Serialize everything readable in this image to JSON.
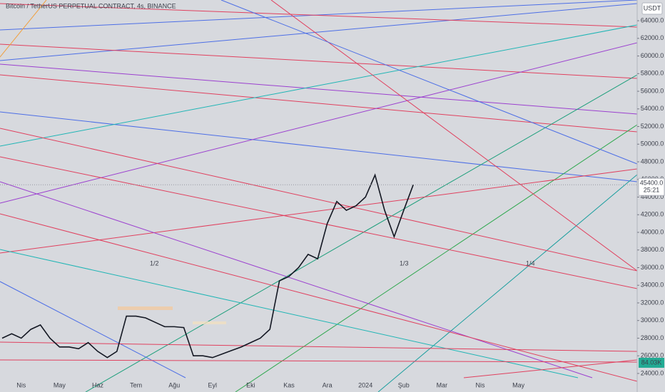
{
  "chart_data": {
    "type": "line",
    "title": "Bitcoin / TetherUS PERPETUAL CONTRACT, 4s, BINANCE",
    "currency": "USDT",
    "last_price_label": "45400.0",
    "countdown": "25:21",
    "volume_label": "84.03K",
    "annotations": [
      "1/2",
      "1/3",
      "1/4"
    ],
    "categories": [
      null,
      null,
      "Nis",
      null,
      null,
      null,
      "May",
      null,
      null,
      null,
      "Haz",
      null,
      null,
      null,
      "Tem",
      null,
      null,
      null,
      "Ağu",
      null,
      null,
      null,
      "Eyl",
      null,
      null,
      null,
      "Eki",
      null,
      null,
      null,
      "Kas",
      null,
      null,
      null,
      "Ara",
      null,
      null,
      null,
      "2024",
      null,
      null,
      null,
      "Şub",
      null,
      null,
      null,
      "Mar",
      null,
      null,
      null,
      "Nis",
      null,
      null,
      null,
      "May",
      null,
      null,
      null,
      null,
      null,
      null,
      null,
      null,
      null,
      null,
      null,
      null
    ],
    "series": [
      {
        "name": "BTCUSDT",
        "color": "#131722",
        "values": [
          28000,
          28500,
          28000,
          29000,
          29500,
          28000,
          27000,
          27000,
          26800,
          27500,
          26500,
          25800,
          26500,
          30500,
          30500,
          30300,
          29800,
          29300,
          29300,
          29200,
          26000,
          26000,
          25800,
          26200,
          26600,
          27000,
          27500,
          28000,
          29000,
          34500,
          35000,
          36000,
          37500,
          37000,
          41000,
          43500,
          42500,
          43000,
          44000,
          46500,
          42500,
          39500,
          42500,
          45400,
          null,
          null,
          null,
          null,
          null,
          null,
          null,
          null,
          null,
          null,
          null,
          null,
          null,
          null,
          null,
          null,
          null,
          null,
          null,
          null,
          null,
          null,
          null
        ]
      }
    ],
    "ylim": [
      23350,
      66350
    ],
    "yticks": [
      {
        "value": 24000,
        "label": "24000.0"
      },
      {
        "value": 26000,
        "label": "26000.0"
      },
      {
        "value": 28000,
        "label": "28000.0"
      },
      {
        "value": 30000,
        "label": "30000.0"
      },
      {
        "value": 32000,
        "label": "32000.0"
      },
      {
        "value": 34000,
        "label": "34000.0"
      },
      {
        "value": 36000,
        "label": "36000.0"
      },
      {
        "value": 38000,
        "label": "38000.0"
      },
      {
        "value": 40000,
        "label": "40000.0"
      },
      {
        "value": 42000,
        "label": "42000.0"
      },
      {
        "value": 44000,
        "label": "44000.0"
      },
      {
        "value": 46000,
        "label": "46000.0"
      },
      {
        "value": 48000,
        "label": "48000.0"
      },
      {
        "value": 50000,
        "label": "50000.0"
      },
      {
        "value": 52000,
        "label": "52000.0"
      },
      {
        "value": 54000,
        "label": "54000.0"
      },
      {
        "value": 56000,
        "label": "56000.0"
      },
      {
        "value": 58000,
        "label": "58000.0"
      },
      {
        "value": 60000,
        "label": "60000.0"
      },
      {
        "value": 62000,
        "label": "62000.0"
      },
      {
        "value": 64000,
        "label": "64000.0"
      }
    ],
    "grid": false
  }
}
